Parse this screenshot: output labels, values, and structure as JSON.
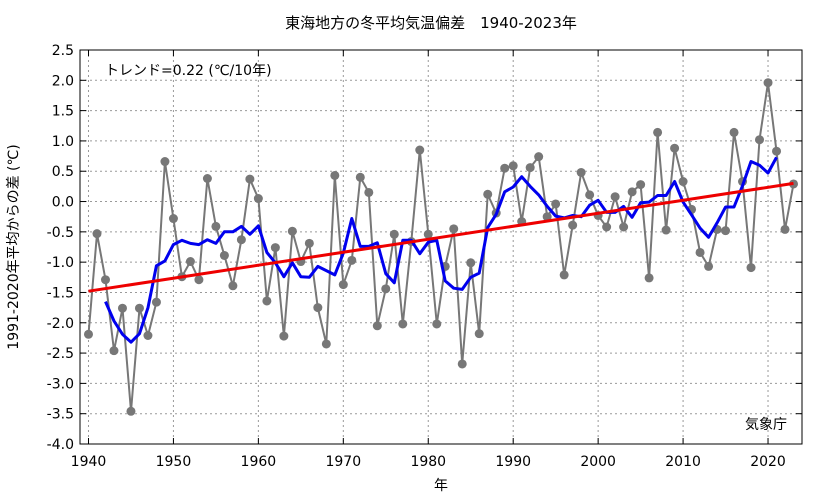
{
  "chart_data": {
    "type": "line",
    "title": "東海地方の冬平均気温偏差　1940-2023年",
    "xlabel": "年",
    "ylabel": "1991-2020年平均からの差 (℃)",
    "xlim": [
      1939,
      2024
    ],
    "ylim": [
      -4.0,
      2.5
    ],
    "x_ticks": [
      1940,
      1950,
      1960,
      1970,
      1980,
      1990,
      2000,
      2010,
      2020
    ],
    "y_ticks": [
      2.5,
      2.0,
      1.5,
      1.0,
      0.5,
      0.0,
      -0.5,
      -1.0,
      -1.5,
      -2.0,
      -2.5,
      -3.0,
      -3.5,
      -4.0
    ],
    "grid": true,
    "trend_text": "トレンド=0.22 (℃/10年)",
    "source_label": "気象庁",
    "series": [
      {
        "color": "#777777",
        "style": "line-markers",
        "x": [
          1940,
          1941,
          1942,
          1943,
          1944,
          1945,
          1946,
          1947,
          1948,
          1949,
          1950,
          1951,
          1952,
          1953,
          1954,
          1955,
          1956,
          1957,
          1958,
          1959,
          1960,
          1961,
          1962,
          1963,
          1964,
          1965,
          1966,
          1967,
          1968,
          1969,
          1970,
          1971,
          1972,
          1973,
          1974,
          1975,
          1976,
          1977,
          1978,
          1979,
          1980,
          1981,
          1982,
          1983,
          1984,
          1985,
          1986,
          1987,
          1988,
          1989,
          1990,
          1991,
          1992,
          1993,
          1994,
          1995,
          1996,
          1997,
          1998,
          1999,
          2000,
          2001,
          2002,
          2003,
          2004,
          2005,
          2006,
          2007,
          2008,
          2009,
          2010,
          2011,
          2012,
          2013,
          2014,
          2015,
          2016,
          2017,
          2018,
          2019,
          2020,
          2021,
          2022,
          2023
        ],
        "values": [
          -2.19,
          -0.53,
          -1.29,
          -2.46,
          -1.76,
          -3.46,
          -1.76,
          -2.21,
          -1.66,
          0.66,
          -0.28,
          -1.24,
          -0.99,
          -1.29,
          0.38,
          -0.41,
          -0.89,
          -1.39,
          -0.63,
          0.37,
          0.05,
          -1.64,
          -0.76,
          -2.22,
          -0.49,
          -0.99,
          -0.69,
          -1.75,
          -2.35,
          0.43,
          -1.37,
          -0.97,
          0.4,
          0.15,
          -2.05,
          -1.44,
          -0.54,
          -2.02,
          -0.66,
          0.85,
          -0.54,
          -2.02,
          -1.07,
          -0.45,
          -2.68,
          -1.01,
          -2.18,
          0.12,
          -0.19,
          0.55,
          0.59,
          -0.33,
          0.56,
          0.74,
          -0.25,
          -0.04,
          -1.21,
          -0.39,
          0.48,
          0.11,
          -0.23,
          -0.42,
          0.08,
          -0.42,
          0.16,
          0.28,
          -1.26,
          1.14,
          -0.47,
          0.88,
          0.33,
          -0.13,
          -0.84,
          -1.07,
          -0.46,
          -0.48,
          1.14,
          0.33,
          -1.09,
          1.02,
          1.96,
          0.83,
          -0.46,
          0.29
        ]
      },
      {
        "color": "#0000ee",
        "style": "line",
        "x": [
          1942,
          1943,
          1944,
          1945,
          1946,
          1947,
          1948,
          1949,
          1950,
          1951,
          1952,
          1953,
          1954,
          1955,
          1956,
          1957,
          1958,
          1959,
          1960,
          1961,
          1962,
          1963,
          1964,
          1965,
          1966,
          1967,
          1968,
          1969,
          1970,
          1971,
          1972,
          1973,
          1974,
          1975,
          1976,
          1977,
          1978,
          1979,
          1980,
          1981,
          1982,
          1983,
          1984,
          1985,
          1986,
          1987,
          1988,
          1989,
          1990,
          1991,
          1992,
          1993,
          1994,
          1995,
          1996,
          1997,
          1998,
          1999,
          2000,
          2001,
          2002,
          2003,
          2004,
          2005,
          2006,
          2007,
          2008,
          2009,
          2010,
          2011,
          2012,
          2013,
          2014,
          2015,
          2016,
          2017,
          2018,
          2019,
          2020,
          2021
        ],
        "values": [
          -1.65,
          -1.97,
          -2.19,
          -2.32,
          -2.18,
          -1.75,
          -1.06,
          -0.98,
          -0.71,
          -0.64,
          -0.69,
          -0.71,
          -0.63,
          -0.69,
          -0.5,
          -0.5,
          -0.41,
          -0.54,
          -0.4,
          -0.84,
          -1.01,
          -1.24,
          -1.01,
          -1.24,
          -1.25,
          -1.07,
          -1.14,
          -1.21,
          -0.85,
          -0.28,
          -0.74,
          -0.74,
          -0.68,
          -1.19,
          -1.34,
          -0.64,
          -0.64,
          -0.86,
          -0.67,
          -0.64,
          -1.31,
          -1.43,
          -1.45,
          -1.25,
          -1.18,
          -0.43,
          -0.21,
          0.16,
          0.24,
          0.41,
          0.25,
          0.11,
          -0.08,
          -0.24,
          -0.27,
          -0.23,
          -0.25,
          -0.06,
          0.02,
          -0.18,
          -0.18,
          -0.08,
          -0.26,
          -0.02,
          -0.01,
          0.1,
          0.1,
          0.33,
          -0.01,
          -0.22,
          -0.44,
          -0.59,
          -0.35,
          -0.09,
          -0.09,
          0.26,
          0.66,
          0.6,
          0.47,
          0.73
        ]
      },
      {
        "color": "#ee0000",
        "style": "line",
        "x": [
          1940,
          2023
        ],
        "values": [
          -1.48,
          0.3
        ]
      }
    ]
  }
}
